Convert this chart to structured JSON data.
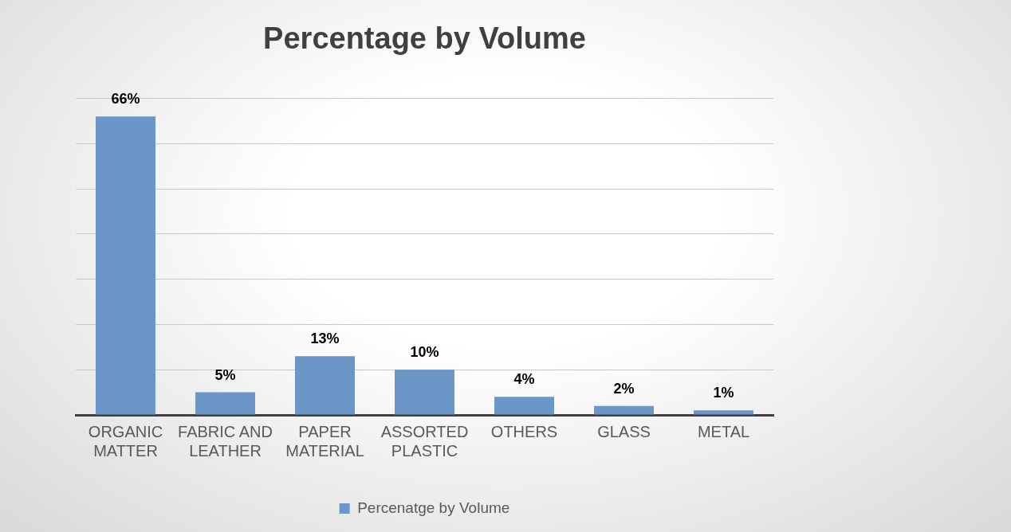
{
  "chart_data": {
    "type": "bar",
    "title": "Percentage by Volume",
    "categories": [
      "ORGANIC MATTER",
      "FABRIC AND LEATHER",
      "PAPER MATERIAL",
      "ASSORTED PLASTIC",
      "OTHERS",
      "GLASS",
      "METAL"
    ],
    "series": [
      {
        "name": "Percenatge by Volume",
        "color": "#6a96c8",
        "values": [
          66,
          5,
          13,
          10,
          4,
          2,
          1
        ],
        "value_labels": [
          "66%",
          "5%",
          "13%",
          "10%",
          "4%",
          "2%",
          "1%"
        ]
      }
    ],
    "ylim": [
      0,
      70
    ],
    "yticks": [
      {
        "value": 0,
        "label": null
      },
      {
        "value": 10,
        "label": null
      },
      {
        "value": 20,
        "label": null
      },
      {
        "value": 30,
        "label": null
      },
      {
        "value": 40,
        "label": null
      },
      {
        "value": 50,
        "label": null
      },
      {
        "value": 60,
        "label": null
      },
      {
        "value": 70,
        "label": null
      }
    ],
    "tick_labels": "x",
    "grid": "y",
    "legend": "bottom"
  }
}
